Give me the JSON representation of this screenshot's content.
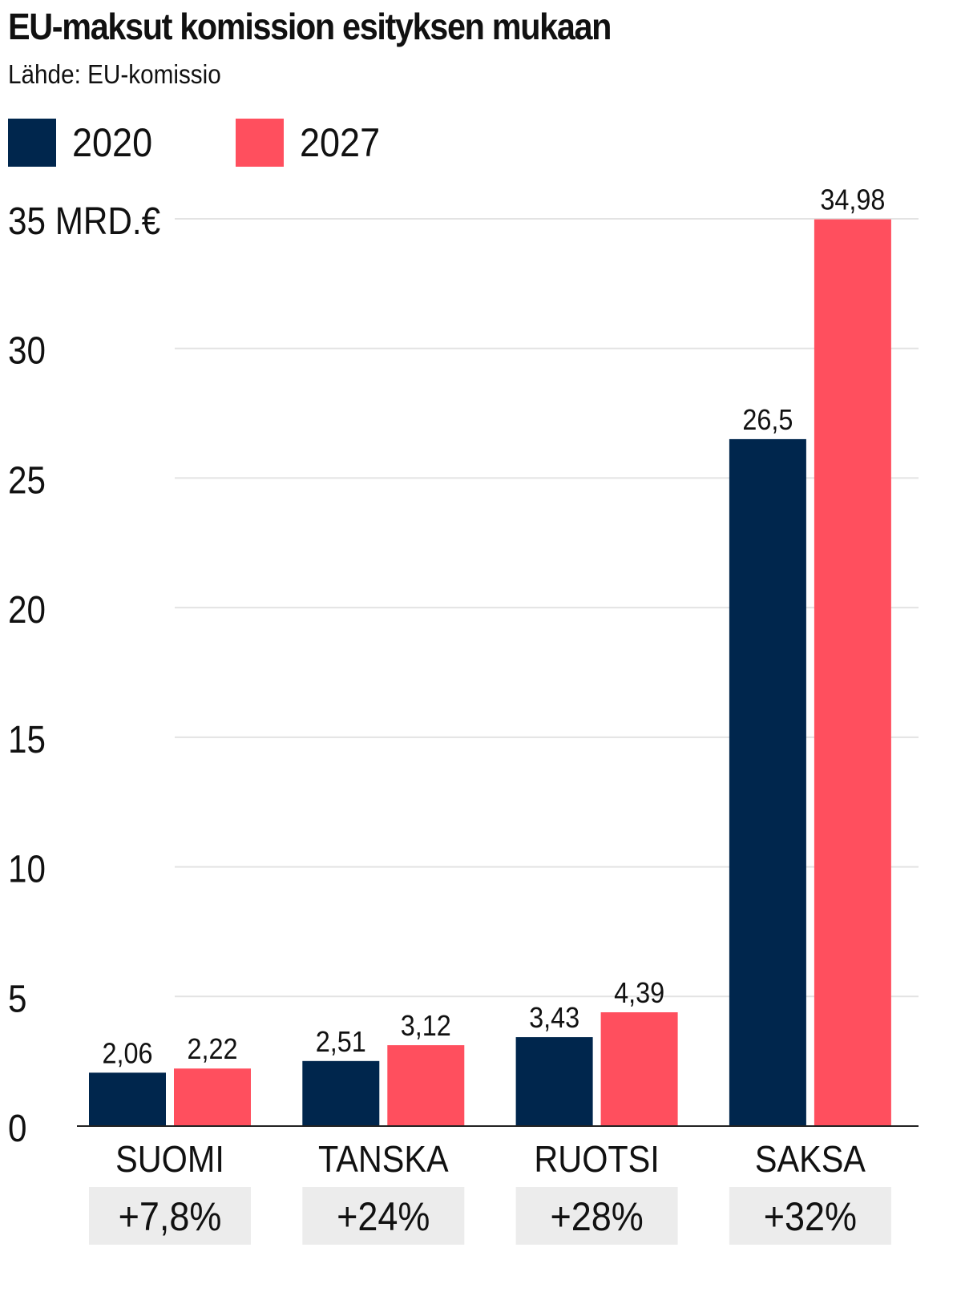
{
  "chart_data": {
    "type": "bar",
    "title": "EU-maksut komission esityksen mukaan",
    "subtitle": "Lähde: EU-komissio",
    "y_unit_label": "35 MRD.€",
    "ylim": [
      0,
      35
    ],
    "y_ticks": [
      "0",
      "5",
      "10",
      "15",
      "20",
      "25",
      "30",
      "35 MRD.€"
    ],
    "y_tick_values": [
      0,
      5,
      10,
      15,
      20,
      25,
      30,
      35
    ],
    "categories": [
      "SUOMI",
      "TANSKA",
      "RUOTSI",
      "SAKSA"
    ],
    "changes": [
      "+7,8%",
      "+24%",
      "+28%",
      "+32%"
    ],
    "series": [
      {
        "name": "2020",
        "color": "#00264d",
        "values": [
          2.06,
          2.51,
          3.43,
          26.5
        ],
        "labels": [
          "2,06",
          "2,51",
          "3,43",
          "26,5"
        ]
      },
      {
        "name": "2027",
        "color": "#ff4f5e",
        "values": [
          2.22,
          3.12,
          4.39,
          34.98
        ],
        "labels": [
          "2,22",
          "3,12",
          "4,39",
          "34,98"
        ]
      }
    ],
    "grid": true,
    "legend": "top-left"
  }
}
